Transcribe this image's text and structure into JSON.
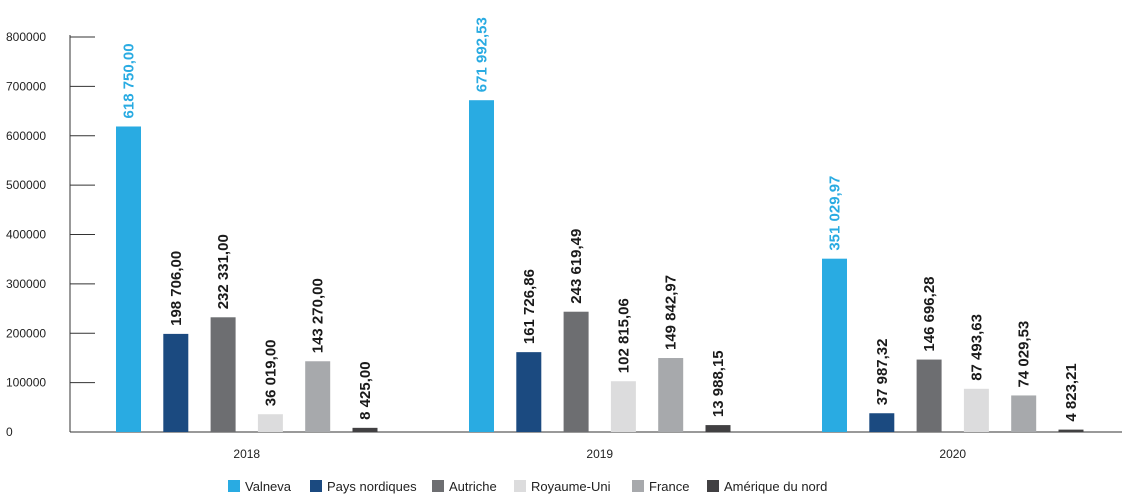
{
  "chart_data": {
    "type": "bar",
    "title": "",
    "xlabel": "",
    "ylabel": "",
    "categories": [
      "2018",
      "2019",
      "2020"
    ],
    "ylim": [
      0,
      800000
    ],
    "yticks": [
      0,
      100000,
      200000,
      300000,
      400000,
      500000,
      600000,
      700000,
      800000
    ],
    "ytick_labels": [
      "0",
      "100000",
      "200000",
      "300000",
      "400000",
      "500000",
      "600000",
      "700000",
      "800000"
    ],
    "grid": false,
    "legend_position": "bottom",
    "series": [
      {
        "name": "Valneva",
        "color": "#29abe2",
        "values": [
          618750.0,
          671992.53,
          351029.97
        ],
        "labels": [
          "618 750,00",
          "671 992,53",
          "351 029,97"
        ],
        "label_color": "#29abe2"
      },
      {
        "name": "Pays nordiques",
        "color": "#1b4a80",
        "values": [
          198706.0,
          161726.86,
          37987.32
        ],
        "labels": [
          "198 706,00",
          "161 726,86",
          "37 987,32"
        ],
        "label_color": "#1a1a1a"
      },
      {
        "name": "Autriche",
        "color": "#6d6e71",
        "values": [
          232331.0,
          243619.49,
          146696.28
        ],
        "labels": [
          "232 331,00",
          "243 619,49",
          "146 696,28"
        ],
        "label_color": "#1a1a1a"
      },
      {
        "name": "Royaume-Uni",
        "color": "#dcdcdd",
        "values": [
          36019.0,
          102815.06,
          87493.63
        ],
        "labels": [
          "36 019,00",
          "102 815,06",
          "87 493,63"
        ],
        "label_color": "#1a1a1a"
      },
      {
        "name": "France",
        "color": "#a7a9ac",
        "values": [
          143270.0,
          149842.97,
          74029.53
        ],
        "labels": [
          "143 270,00",
          "149 842,97",
          "74 029,53"
        ],
        "label_color": "#1a1a1a"
      },
      {
        "name": "Amérique du nord",
        "color": "#414042",
        "values": [
          8425.0,
          13988.15,
          4823.21
        ],
        "labels": [
          "8 425,00",
          "13 988,15",
          "4 823,21"
        ],
        "label_color": "#1a1a1a"
      }
    ]
  }
}
